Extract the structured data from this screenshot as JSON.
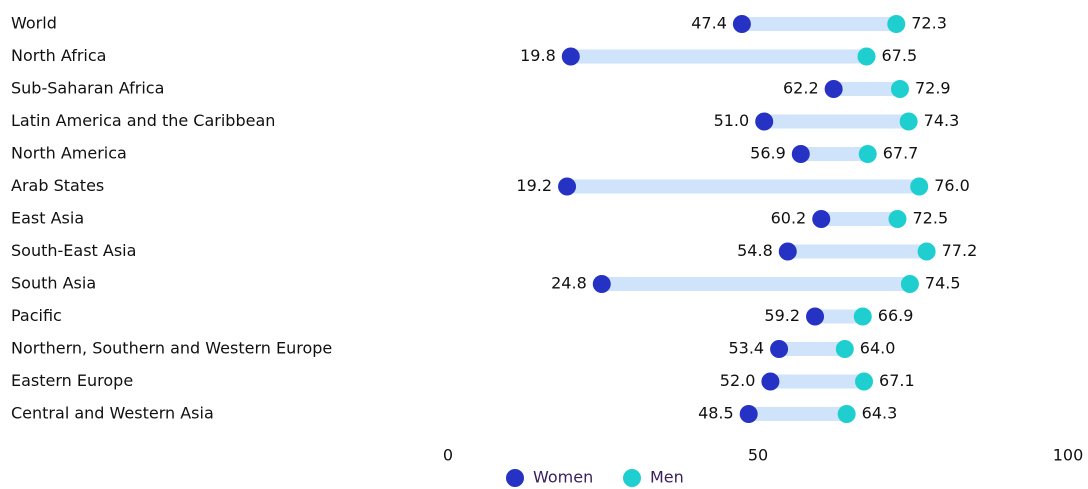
{
  "chart_data": {
    "type": "dumbbell",
    "categories": [
      "World",
      "North Africa",
      "Sub-Saharan Africa",
      "Latin America and the Caribbean",
      "North America",
      "Arab States",
      "East Asia",
      "South-East Asia",
      "South Asia",
      "Pacific",
      "Northern, Southern and Western Europe",
      "Eastern Europe",
      "Central and Western Asia"
    ],
    "series": [
      {
        "name": "Women",
        "color": "#2632c4",
        "values": [
          47.4,
          19.8,
          62.2,
          51,
          56.9,
          19.2,
          60.2,
          54.8,
          24.8,
          59.2,
          53.4,
          52,
          48.5
        ],
        "value_labels": [
          "47.4",
          "19.8",
          "62.2",
          "51.0",
          "56.9",
          "19.2",
          "60.2",
          "54.8",
          "24.8",
          "59.2",
          "53.4",
          "52.0",
          "48.5"
        ]
      },
      {
        "name": "Men",
        "color": "#1fcfd0",
        "values": [
          72.3,
          67.5,
          72.9,
          74.3,
          67.7,
          76,
          72.5,
          77.2,
          74.5,
          66.9,
          64,
          67.1,
          64.3
        ],
        "value_labels": [
          "72.3",
          "67.5",
          "72.9",
          "74.3",
          "67.7",
          "76.0",
          "72.5",
          "77.2",
          "74.5",
          "66.9",
          "64.0",
          "67.1",
          "64.3"
        ]
      }
    ],
    "connector_color": "#cfe3fa",
    "xlim": [
      0,
      100
    ],
    "xticks": [
      0,
      50,
      100
    ]
  }
}
